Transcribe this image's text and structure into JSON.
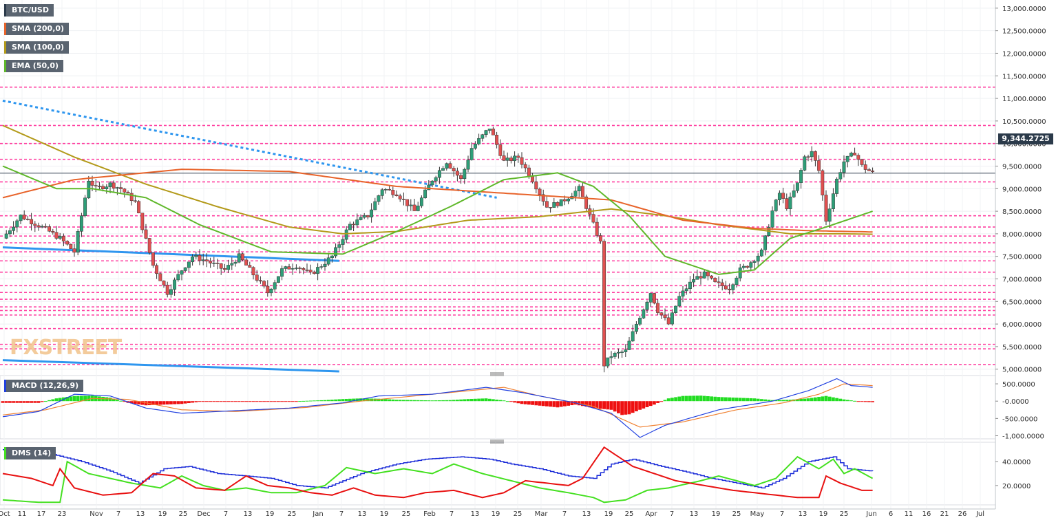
{
  "labels": {
    "symbol": "BTC/USD",
    "sma200": "SMA (200,0)",
    "sma100": "SMA (100,0)",
    "ema50": "EMA (50,0)",
    "macd": "MACD (12,26,9)",
    "dms": "DMS (14)"
  },
  "colors": {
    "sma200": "#e8632a",
    "sma100": "#b39a1a",
    "ema50": "#5fb82a",
    "bull": "#2e9e78",
    "bear": "#e05050",
    "level": "#ff3fa0",
    "trend": "#2e96ef",
    "macd_line": "#2040e0",
    "signal_line": "#f08030",
    "dms_adx": "#1a2bd8",
    "dms_plus": "#44e020",
    "dms_minus": "#e81010"
  },
  "watermark": {
    "a": "FX",
    "b": "STREET"
  },
  "current_price": "9,344.2725",
  "chart_data": [
    {
      "type": "candlestick",
      "title": "BTC/USD",
      "ylim": [
        5000,
        13200
      ],
      "yticks": [
        "13,000.0000",
        "12,500.0000",
        "12,000.0000",
        "11,500.0000",
        "11,000.0000",
        "10,500.0000",
        "10,000.0000",
        "9,500.0000",
        "9,000.0000",
        "8,500.0000",
        "8,000.0000",
        "7,500.0000",
        "7,000.0000",
        "6,500.0000",
        "6,000.0000",
        "5,500.0000",
        "5,000.0000"
      ],
      "yvals": [
        13000,
        12500,
        12000,
        11500,
        11000,
        10500,
        10000,
        9500,
        9000,
        8500,
        8000,
        7500,
        7000,
        6500,
        6000,
        5500,
        5000
      ],
      "xticks": [
        "Oct",
        "11",
        "17",
        "23",
        "Nov",
        "7",
        "13",
        "19",
        "25",
        "Dec",
        "7",
        "13",
        "19",
        "25",
        "Jan",
        "7",
        "13",
        "19",
        "25",
        "Feb",
        "7",
        "13",
        "19",
        "25",
        "Mar",
        "7",
        "13",
        "19",
        "25",
        "Apr",
        "7",
        "13",
        "19",
        "25",
        "May",
        "7",
        "13",
        "19",
        "25",
        "Jun",
        "6",
        "11",
        "16",
        "21",
        "26",
        "Jul"
      ],
      "levels": [
        11250,
        10400,
        10000,
        9650,
        9150,
        8400,
        8150,
        7950,
        7800,
        7600,
        7400,
        7150,
        6850,
        6700,
        6550,
        6380,
        6300,
        6200,
        5900,
        5550,
        5450,
        5100
      ],
      "anchors": [
        [
          0,
          7900
        ],
        [
          5,
          8400
        ],
        [
          12,
          8100
        ],
        [
          16,
          7900
        ],
        [
          20,
          7600
        ],
        [
          24,
          9200
        ],
        [
          26,
          9000
        ],
        [
          30,
          9100
        ],
        [
          33,
          9000
        ],
        [
          37,
          8700
        ],
        [
          42,
          7300
        ],
        [
          46,
          6700
        ],
        [
          50,
          7200
        ],
        [
          53,
          7500
        ],
        [
          57,
          7400
        ],
        [
          62,
          7200
        ],
        [
          66,
          7500
        ],
        [
          70,
          7100
        ],
        [
          74,
          6700
        ],
        [
          78,
          7200
        ],
        [
          82,
          7300
        ],
        [
          86,
          7100
        ],
        [
          92,
          7500
        ],
        [
          97,
          8200
        ],
        [
          102,
          8400
        ],
        [
          106,
          9000
        ],
        [
          110,
          8900
        ],
        [
          115,
          8500
        ],
        [
          120,
          9200
        ],
        [
          124,
          9600
        ],
        [
          128,
          9200
        ],
        [
          131,
          9900
        ],
        [
          136,
          10350
        ],
        [
          140,
          9600
        ],
        [
          144,
          9700
        ],
        [
          148,
          9200
        ],
        [
          152,
          8600
        ],
        [
          156,
          8700
        ],
        [
          161,
          9000
        ],
        [
          165,
          8200
        ],
        [
          167,
          7800
        ],
        [
          168,
          5100
        ],
        [
          170,
          5300
        ],
        [
          174,
          5400
        ],
        [
          177,
          6000
        ],
        [
          181,
          6700
        ],
        [
          183,
          6300
        ],
        [
          186,
          6000
        ],
        [
          189,
          6600
        ],
        [
          193,
          7000
        ],
        [
          196,
          7100
        ],
        [
          199,
          6900
        ],
        [
          203,
          6800
        ],
        [
          206,
          7200
        ],
        [
          208,
          7300
        ],
        [
          212,
          7600
        ],
        [
          215,
          8500
        ],
        [
          217,
          8900
        ],
        [
          219,
          8600
        ],
        [
          222,
          9100
        ],
        [
          224,
          9700
        ],
        [
          226,
          9800
        ],
        [
          228,
          9400
        ],
        [
          230,
          8300
        ],
        [
          233,
          9200
        ],
        [
          235,
          9600
        ],
        [
          238,
          9800
        ],
        [
          240,
          9500
        ],
        [
          243,
          9344
        ]
      ],
      "sma200": [
        [
          0,
          8800
        ],
        [
          20,
          9200
        ],
        [
          50,
          9430
        ],
        [
          80,
          9380
        ],
        [
          110,
          9050
        ],
        [
          140,
          8900
        ],
        [
          170,
          8750
        ],
        [
          190,
          8300
        ],
        [
          210,
          8120
        ],
        [
          225,
          8070
        ],
        [
          243,
          8040
        ]
      ],
      "sma100": [
        [
          0,
          10400
        ],
        [
          20,
          9700
        ],
        [
          40,
          9100
        ],
        [
          60,
          8600
        ],
        [
          80,
          8150
        ],
        [
          95,
          8000
        ],
        [
          110,
          8050
        ],
        [
          130,
          8300
        ],
        [
          150,
          8380
        ],
        [
          170,
          8550
        ],
        [
          185,
          8400
        ],
        [
          200,
          8200
        ],
        [
          220,
          8000
        ],
        [
          235,
          8000
        ],
        [
          243,
          7990
        ]
      ],
      "ema50": [
        [
          0,
          9500
        ],
        [
          15,
          9000
        ],
        [
          25,
          9000
        ],
        [
          40,
          8800
        ],
        [
          55,
          8200
        ],
        [
          75,
          7600
        ],
        [
          95,
          7550
        ],
        [
          110,
          8050
        ],
        [
          125,
          8600
        ],
        [
          140,
          9200
        ],
        [
          155,
          9350
        ],
        [
          165,
          9050
        ],
        [
          175,
          8400
        ],
        [
          185,
          7500
        ],
        [
          200,
          7100
        ],
        [
          210,
          7200
        ],
        [
          220,
          7900
        ],
        [
          230,
          8150
        ],
        [
          243,
          8500
        ]
      ],
      "trend_dotted": [
        [
          0,
          10950
        ],
        [
          138,
          8800
        ]
      ],
      "trend_solid_1": [
        [
          0,
          7700
        ],
        [
          94,
          7400
        ]
      ],
      "trend_solid_2": [
        [
          0,
          5200
        ],
        [
          94,
          4950
        ]
      ]
    },
    {
      "type": "line",
      "title": "MACD (12,26,9)",
      "ylim": [
        -1050,
        700
      ],
      "yticks": [
        "500.0000",
        "-0.0000",
        "-500.0000",
        "-1,000.0000"
      ],
      "yvals": [
        500,
        0,
        -500,
        -1000
      ],
      "macd": [
        [
          0,
          -450
        ],
        [
          10,
          -300
        ],
        [
          20,
          200
        ],
        [
          30,
          150
        ],
        [
          40,
          -200
        ],
        [
          50,
          -350
        ],
        [
          60,
          -300
        ],
        [
          80,
          -200
        ],
        [
          95,
          -50
        ],
        [
          105,
          150
        ],
        [
          120,
          200
        ],
        [
          135,
          400
        ],
        [
          145,
          250
        ],
        [
          160,
          -50
        ],
        [
          170,
          -350
        ],
        [
          178,
          -1050
        ],
        [
          185,
          -700
        ],
        [
          200,
          -250
        ],
        [
          215,
          0
        ],
        [
          225,
          300
        ],
        [
          233,
          650
        ],
        [
          237,
          450
        ],
        [
          243,
          400
        ]
      ],
      "signal": [
        [
          0,
          -400
        ],
        [
          12,
          -250
        ],
        [
          25,
          80
        ],
        [
          35,
          50
        ],
        [
          50,
          -250
        ],
        [
          65,
          -300
        ],
        [
          85,
          -180
        ],
        [
          100,
          0
        ],
        [
          115,
          150
        ],
        [
          130,
          300
        ],
        [
          140,
          400
        ],
        [
          150,
          150
        ],
        [
          165,
          -150
        ],
        [
          178,
          -750
        ],
        [
          190,
          -600
        ],
        [
          205,
          -250
        ],
        [
          218,
          -50
        ],
        [
          228,
          200
        ],
        [
          235,
          500
        ],
        [
          243,
          450
        ]
      ],
      "hist": [
        [
          0,
          -50
        ],
        [
          5,
          -50
        ],
        [
          10,
          -50
        ],
        [
          15,
          80
        ],
        [
          20,
          150
        ],
        [
          25,
          160
        ],
        [
          30,
          100
        ],
        [
          35,
          -50
        ],
        [
          40,
          -120
        ],
        [
          45,
          -100
        ],
        [
          50,
          -80
        ],
        [
          55,
          -20
        ],
        [
          60,
          -20
        ],
        [
          70,
          -20
        ],
        [
          80,
          -10
        ],
        [
          90,
          30
        ],
        [
          95,
          60
        ],
        [
          100,
          80
        ],
        [
          105,
          70
        ],
        [
          110,
          40
        ],
        [
          115,
          30
        ],
        [
          120,
          20
        ],
        [
          125,
          30
        ],
        [
          130,
          60
        ],
        [
          135,
          80
        ],
        [
          140,
          20
        ],
        [
          145,
          -80
        ],
        [
          150,
          -130
        ],
        [
          155,
          -180
        ],
        [
          160,
          -100
        ],
        [
          165,
          -200
        ],
        [
          170,
          -250
        ],
        [
          173,
          -400
        ],
        [
          175,
          -380
        ],
        [
          178,
          -250
        ],
        [
          182,
          -100
        ],
        [
          186,
          80
        ],
        [
          190,
          150
        ],
        [
          195,
          160
        ],
        [
          200,
          120
        ],
        [
          205,
          100
        ],
        [
          210,
          80
        ],
        [
          215,
          30
        ],
        [
          220,
          40
        ],
        [
          225,
          80
        ],
        [
          230,
          150
        ],
        [
          235,
          50
        ],
        [
          240,
          -20
        ],
        [
          243,
          -30
        ]
      ]
    },
    {
      "type": "line",
      "title": "DMS (14)",
      "ylim": [
        5,
        55
      ],
      "yticks": [
        "40.0000",
        "20.0000"
      ],
      "yvals": [
        40,
        20
      ],
      "adx": [
        [
          0,
          50
        ],
        [
          8,
          48
        ],
        [
          14,
          46
        ],
        [
          22,
          40
        ],
        [
          30,
          32
        ],
        [
          38,
          22
        ],
        [
          45,
          34
        ],
        [
          52,
          36
        ],
        [
          60,
          30
        ],
        [
          68,
          28
        ],
        [
          75,
          26
        ],
        [
          82,
          20
        ],
        [
          90,
          18
        ],
        [
          100,
          30
        ],
        [
          110,
          38
        ],
        [
          118,
          42
        ],
        [
          128,
          44
        ],
        [
          136,
          42
        ],
        [
          142,
          38
        ],
        [
          150,
          34
        ],
        [
          158,
          28
        ],
        [
          165,
          26
        ],
        [
          170,
          38
        ],
        [
          176,
          42
        ],
        [
          184,
          36
        ],
        [
          190,
          32
        ],
        [
          198,
          26
        ],
        [
          205,
          22
        ],
        [
          212,
          18
        ],
        [
          218,
          26
        ],
        [
          225,
          40
        ],
        [
          232,
          44
        ],
        [
          236,
          34
        ],
        [
          243,
          32
        ]
      ],
      "plus": [
        [
          0,
          8
        ],
        [
          10,
          6
        ],
        [
          16,
          6
        ],
        [
          18,
          40
        ],
        [
          24,
          30
        ],
        [
          30,
          26
        ],
        [
          36,
          22
        ],
        [
          44,
          18
        ],
        [
          50,
          28
        ],
        [
          56,
          20
        ],
        [
          62,
          16
        ],
        [
          68,
          18
        ],
        [
          75,
          14
        ],
        [
          82,
          14
        ],
        [
          90,
          20
        ],
        [
          96,
          35
        ],
        [
          104,
          30
        ],
        [
          112,
          34
        ],
        [
          120,
          30
        ],
        [
          126,
          38
        ],
        [
          134,
          30
        ],
        [
          142,
          24
        ],
        [
          150,
          18
        ],
        [
          158,
          14
        ],
        [
          165,
          10
        ],
        [
          168,
          6
        ],
        [
          174,
          8
        ],
        [
          180,
          16
        ],
        [
          186,
          18
        ],
        [
          195,
          24
        ],
        [
          200,
          28
        ],
        [
          205,
          24
        ],
        [
          210,
          20
        ],
        [
          216,
          26
        ],
        [
          222,
          44
        ],
        [
          228,
          34
        ],
        [
          232,
          42
        ],
        [
          235,
          30
        ],
        [
          238,
          34
        ],
        [
          243,
          26
        ]
      ],
      "minus": [
        [
          0,
          30
        ],
        [
          8,
          26
        ],
        [
          14,
          20
        ],
        [
          16,
          34
        ],
        [
          20,
          18
        ],
        [
          28,
          12
        ],
        [
          36,
          14
        ],
        [
          42,
          30
        ],
        [
          48,
          28
        ],
        [
          54,
          18
        ],
        [
          62,
          16
        ],
        [
          68,
          28
        ],
        [
          74,
          20
        ],
        [
          80,
          18
        ],
        [
          86,
          14
        ],
        [
          92,
          12
        ],
        [
          98,
          18
        ],
        [
          104,
          12
        ],
        [
          112,
          10
        ],
        [
          118,
          14
        ],
        [
          126,
          16
        ],
        [
          134,
          10
        ],
        [
          140,
          14
        ],
        [
          146,
          24
        ],
        [
          152,
          22
        ],
        [
          158,
          20
        ],
        [
          162,
          26
        ],
        [
          168,
          52
        ],
        [
          172,
          44
        ],
        [
          176,
          36
        ],
        [
          182,
          30
        ],
        [
          188,
          24
        ],
        [
          196,
          20
        ],
        [
          204,
          16
        ],
        [
          210,
          14
        ],
        [
          216,
          12
        ],
        [
          222,
          10
        ],
        [
          228,
          10
        ],
        [
          230,
          28
        ],
        [
          234,
          22
        ],
        [
          240,
          16
        ],
        [
          243,
          16
        ]
      ]
    }
  ]
}
